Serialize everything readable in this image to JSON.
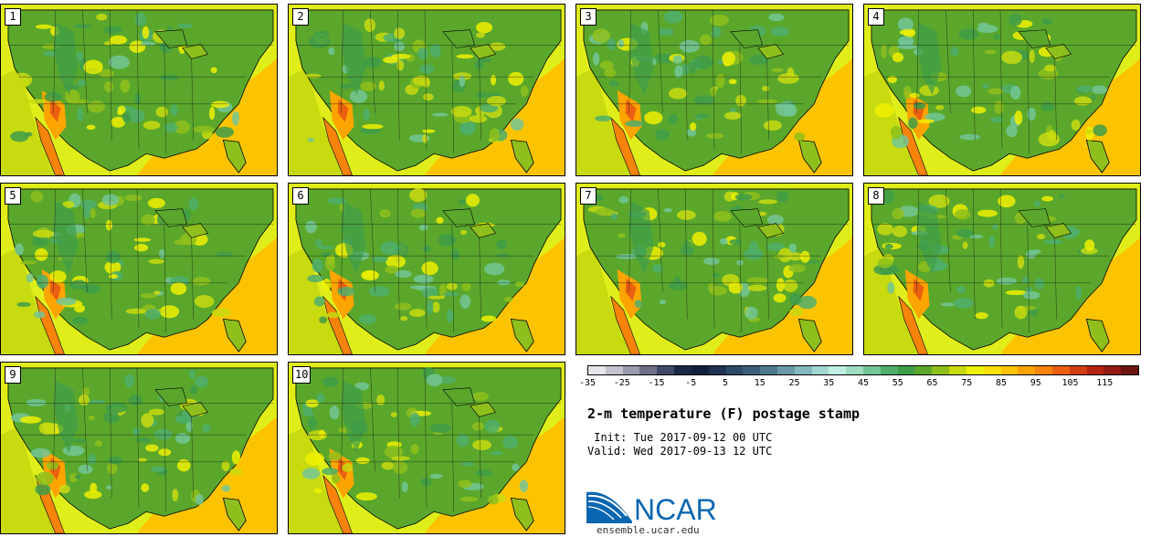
{
  "stamps": [
    {
      "label": "1"
    },
    {
      "label": "2"
    },
    {
      "label": "3"
    },
    {
      "label": "4"
    },
    {
      "label": "5"
    },
    {
      "label": "6"
    },
    {
      "label": "7"
    },
    {
      "label": "8"
    },
    {
      "label": "9"
    },
    {
      "label": "10"
    }
  ],
  "colorbar": {
    "tick_labels": [
      "-35",
      "-25",
      "-15",
      "-5",
      "5",
      "15",
      "25",
      "35",
      "45",
      "55",
      "65",
      "75",
      "85",
      "95",
      "105",
      "115"
    ],
    "colors": [
      "#e6e6ec",
      "#c4c4cf",
      "#9a9aae",
      "#6e7088",
      "#3f4868",
      "#1c2648",
      "#10203f",
      "#1f3254",
      "#2d4a6a",
      "#3c5f7d",
      "#4e7990",
      "#6999a6",
      "#84b8bd",
      "#a3d8d2",
      "#bfeee3",
      "#9fdcc0",
      "#73c596",
      "#4fae6c",
      "#3f9c49",
      "#5aa72c",
      "#8fbf1c",
      "#c8da10",
      "#eef000",
      "#fbe000",
      "#fdc400",
      "#fca400",
      "#f6830a",
      "#ea5f10",
      "#d23d12",
      "#b52411",
      "#921a12",
      "#6e150f"
    ]
  },
  "title": "2-m temperature (F) postage stamp",
  "init": " Init: Tue 2017-09-12 00 UTC",
  "valid": "Valid: Wed 2017-09-13 12 UTC",
  "logo_text": "NCAR",
  "site": "ensemble.ucar.edu"
}
